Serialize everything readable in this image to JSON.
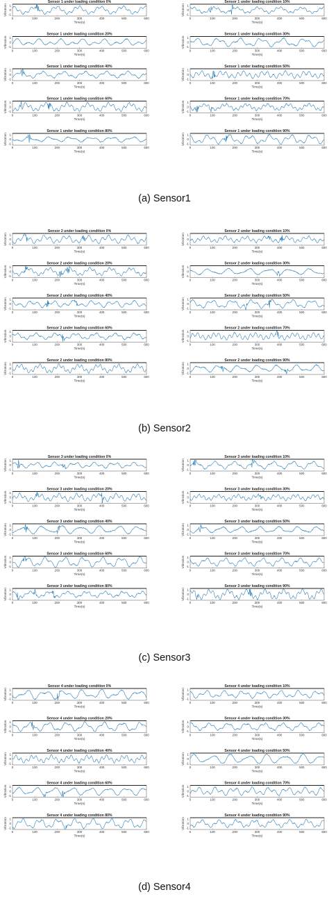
{
  "figure": {
    "x_axis_label": "Time(s)",
    "x_ticks": [
      "0",
      "100",
      "200",
      "300",
      "400",
      "500",
      "600"
    ],
    "y_axis_label": "Vibration",
    "line_color": "#1f77b4"
  },
  "chart_data": [
    {
      "caption": "(a) Sensor1",
      "type": "line",
      "panels": [
        {
          "title": "Sensor 1 under loading condition 0%",
          "x_range": [
            0,
            600
          ],
          "burst_at": [
            110
          ],
          "amplitude": 1.0
        },
        {
          "title": "Sensor 1 under loading condition 10%",
          "x_range": [
            0,
            600
          ],
          "burst_at": [
            90,
            185
          ],
          "amplitude": 1.0
        },
        {
          "title": "Sensor 1 under loading condition 20%",
          "x_range": [
            0,
            600
          ],
          "burst_at": [],
          "amplitude": 1.0
        },
        {
          "title": "Sensor 1 under loading condition 30%",
          "x_range": [
            0,
            600
          ],
          "burst_at": [],
          "amplitude": 1.0
        },
        {
          "title": "Sensor 1 under loading condition 40%",
          "x_range": [
            0,
            600
          ],
          "burst_at": [
            45
          ],
          "amplitude": 1.0
        },
        {
          "title": "Sensor 1 under loading condition 50%",
          "x_range": [
            0,
            600
          ],
          "burst_at": [
            105
          ],
          "amplitude": 1.0
        },
        {
          "title": "Sensor 1 under loading condition 60%",
          "x_range": [
            0,
            600
          ],
          "burst_at": [
            40,
            165
          ],
          "amplitude": 1.0
        },
        {
          "title": "Sensor 1 under loading condition 70%",
          "x_range": [
            0,
            600
          ],
          "burst_at": [
            30,
            90
          ],
          "amplitude": 1.0
        },
        {
          "title": "Sensor 1 under loading condition 80%",
          "x_range": [
            0,
            600
          ],
          "burst_at": [
            75
          ],
          "amplitude": 1.0
        },
        {
          "title": "Sensor 1 under loading condition 90%",
          "x_range": [
            0,
            600
          ],
          "burst_at": [
            160
          ],
          "amplitude": 1.0
        }
      ]
    },
    {
      "caption": "(b) Sensor2",
      "type": "line",
      "panels": [
        {
          "title": "Sensor 2 under loading condition 0%",
          "x_range": [
            0,
            600
          ],
          "burst_at": [
            60,
            320
          ],
          "amplitude": 1.0
        },
        {
          "title": "Sensor 2 under loading condition 10%",
          "x_range": [
            0,
            600
          ],
          "burst_at": [
            350,
            410
          ],
          "amplitude": 1.0
        },
        {
          "title": "Sensor 2 under loading condition 20%",
          "x_range": [
            0,
            600
          ],
          "burst_at": [
            60,
            215,
            250
          ],
          "amplitude": 1.0
        },
        {
          "title": "Sensor 2 under loading condition 30%",
          "x_range": [
            0,
            600
          ],
          "burst_at": [
            395
          ],
          "amplitude": 1.0
        },
        {
          "title": "Sensor 2 under loading condition 40%",
          "x_range": [
            0,
            600
          ],
          "burst_at": [
            155,
            285
          ],
          "amplitude": 1.0
        },
        {
          "title": "Sensor 2 under loading condition 50%",
          "x_range": [
            0,
            600
          ],
          "burst_at": [
            250,
            355
          ],
          "amplitude": 1.0
        },
        {
          "title": "Sensor 2 under loading condition 60%",
          "x_range": [
            0,
            600
          ],
          "burst_at": [
            225
          ],
          "amplitude": 1.0
        },
        {
          "title": "Sensor 2 under loading condition 70%",
          "x_range": [
            0,
            600
          ],
          "burst_at": [
            390
          ],
          "amplitude": 1.0
        },
        {
          "title": "Sensor 2 under loading condition 80%",
          "x_range": [
            0,
            600
          ],
          "burst_at": [],
          "amplitude": 1.0
        },
        {
          "title": "Sensor 2 under loading condition 90%",
          "x_range": [
            0,
            600
          ],
          "burst_at": [
            145,
            430
          ],
          "amplitude": 1.0
        }
      ]
    },
    {
      "caption": "(c) Sensor3",
      "type": "line",
      "panels": [
        {
          "title": "Sensor 3 under loading condition 0%",
          "x_range": [
            0,
            600
          ],
          "burst_at": [
            25,
            230
          ],
          "amplitude": 1.0
        },
        {
          "title": "Sensor 3 under loading condition 10%",
          "x_range": [
            0,
            600
          ],
          "burst_at": [
            20,
            280
          ],
          "amplitude": 1.0
        },
        {
          "title": "Sensor 3 under loading condition 20%",
          "x_range": [
            0,
            600
          ],
          "burst_at": [
            110,
            400
          ],
          "amplitude": 1.0
        },
        {
          "title": "Sensor 3 under loading condition 30%",
          "x_range": [
            0,
            600
          ],
          "burst_at": [
            315
          ],
          "amplitude": 1.0
        },
        {
          "title": "Sensor 3 under loading condition 40%",
          "x_range": [
            0,
            600
          ],
          "burst_at": [
            60,
            205
          ],
          "amplitude": 1.0
        },
        {
          "title": "Sensor 3 under loading condition 50%",
          "x_range": [
            0,
            600
          ],
          "burst_at": [
            45
          ],
          "amplitude": 1.0
        },
        {
          "title": "Sensor 3 under loading condition 60%",
          "x_range": [
            0,
            600
          ],
          "burst_at": [
            55
          ],
          "amplitude": 1.0
        },
        {
          "title": "Sensor 3 under loading condition 70%",
          "x_range": [
            0,
            600
          ],
          "burst_at": [],
          "amplitude": 1.0
        },
        {
          "title": "Sensor 3 under loading condition 80%",
          "x_range": [
            0,
            600
          ],
          "burst_at": [
            25,
            100,
            185
          ],
          "amplitude": 1.0
        },
        {
          "title": "Sensor 3 under loading condition 90%",
          "x_range": [
            0,
            600
          ],
          "burst_at": [
            30,
            270
          ],
          "amplitude": 1.0
        }
      ]
    },
    {
      "caption": "(d) Sensor4",
      "type": "line",
      "panels": [
        {
          "title": "Sensor 4 under loading condition 0%",
          "x_range": [
            0,
            600
          ],
          "burst_at": [
            205
          ],
          "amplitude": 1.0
        },
        {
          "title": "Sensor 4 under loading condition 10%",
          "x_range": [
            0,
            600
          ],
          "burst_at": [],
          "amplitude": 1.0
        },
        {
          "title": "Sensor 4 under loading condition 20%",
          "x_range": [
            0,
            600
          ],
          "burst_at": [
            90
          ],
          "amplitude": 1.0
        },
        {
          "title": "Sensor 4 under loading condition 30%",
          "x_range": [
            0,
            600
          ],
          "burst_at": [],
          "amplitude": 1.0
        },
        {
          "title": "Sensor 4 under loading condition 40%",
          "x_range": [
            0,
            600
          ],
          "burst_at": [],
          "amplitude": 1.0
        },
        {
          "title": "Sensor 4 under loading condition 50%",
          "x_range": [
            0,
            600
          ],
          "burst_at": [],
          "amplitude": 1.0
        },
        {
          "title": "Sensor 4 under loading condition 60%",
          "x_range": [
            0,
            600
          ],
          "burst_at": [
            145,
            225
          ],
          "amplitude": 1.0
        },
        {
          "title": "Sensor 4 under loading condition 70%",
          "x_range": [
            0,
            600
          ],
          "burst_at": [],
          "amplitude": 1.0
        },
        {
          "title": "Sensor 4 under loading condition 80%",
          "x_range": [
            0,
            600
          ],
          "burst_at": [
            235
          ],
          "amplitude": 1.0
        },
        {
          "title": "Sensor 4 under loading condition 90%",
          "x_range": [
            0,
            600
          ],
          "burst_at": [],
          "amplitude": 1.0
        }
      ]
    }
  ]
}
